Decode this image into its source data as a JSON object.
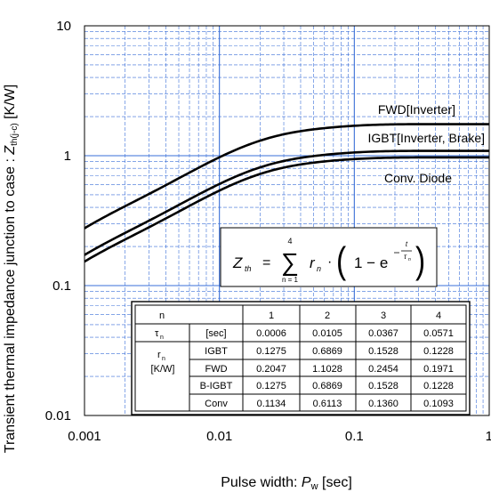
{
  "chart_data": {
    "type": "line",
    "xlabel_prefix": "Pulse width: ",
    "xlabel_symbol": "P",
    "xlabel_sub": "w",
    "xlabel_suffix": " [sec]",
    "ylabel_prefix": "Transient thermal impedance junction to case  : ",
    "ylabel_symbol": "Z",
    "ylabel_sub": "th(j-c)",
    "ylabel_suffix": "  [K/W]",
    "x_scale": "log",
    "y_scale": "log",
    "xlim": [
      0.001,
      1
    ],
    "ylim": [
      0.01,
      10
    ],
    "x_ticks": [
      {
        "value": 0.001,
        "label": "0.001"
      },
      {
        "value": 0.01,
        "label": "0.01"
      },
      {
        "value": 0.1,
        "label": "0.1"
      },
      {
        "value": 1,
        "label": "1"
      }
    ],
    "y_ticks": [
      {
        "value": 0.01,
        "label": "0.01"
      },
      {
        "value": 0.1,
        "label": "0.1"
      },
      {
        "value": 1,
        "label": "1"
      },
      {
        "value": 10,
        "label": "10"
      }
    ],
    "grid": "on",
    "line_color": "#000000",
    "grid_color": "#3a6fd8",
    "series": [
      {
        "name": "FWD[Inverter]",
        "tau": [
          0.0006,
          0.0105,
          0.0367,
          0.0571
        ],
        "r": [
          0.2047,
          1.1028,
          0.2454,
          0.1971
        ]
      },
      {
        "name": "IGBT[Inverter, Brake]",
        "tau": [
          0.0006,
          0.0105,
          0.0367,
          0.0571
        ],
        "r": [
          0.1275,
          0.6869,
          0.1528,
          0.1228
        ]
      },
      {
        "name": "Conv. Diode",
        "tau": [
          0.0006,
          0.0105,
          0.0367,
          0.0571
        ],
        "r": [
          0.1134,
          0.6113,
          0.136,
          0.1093
        ]
      }
    ],
    "formula": {
      "lhs": "Z",
      "lhs_sub": "th",
      "equals": "=",
      "sum_top": "4",
      "sum_bottom": "n = 1",
      "term": "r",
      "term_sub": "n",
      "dot": "·",
      "one_minus": "1 − e",
      "exp_t": "t",
      "exp_tau": "τ",
      "exp_tau_sub": "n"
    },
    "table": {
      "header": [
        "n",
        "1",
        "2",
        "3",
        "4"
      ],
      "tau_label": "τ",
      "tau_sub": "n",
      "tau_unit": "[sec]",
      "tau_values": [
        "0.0006",
        "0.0105",
        "0.0367",
        "0.0571"
      ],
      "r_label_top": "r",
      "r_label_sub": "n",
      "r_label_unit": "[K/W]",
      "rows": [
        {
          "name": "IGBT",
          "values": [
            "0.1275",
            "0.6869",
            "0.1528",
            "0.1228"
          ]
        },
        {
          "name": "FWD",
          "values": [
            "0.2047",
            "1.1028",
            "0.2454",
            "0.1971"
          ]
        },
        {
          "name": "B-IGBT",
          "values": [
            "0.1275",
            "0.6869",
            "0.1528",
            "0.1228"
          ]
        },
        {
          "name": "Conv",
          "values": [
            "0.1134",
            "0.6113",
            "0.1360",
            "0.1093"
          ]
        }
      ]
    }
  }
}
